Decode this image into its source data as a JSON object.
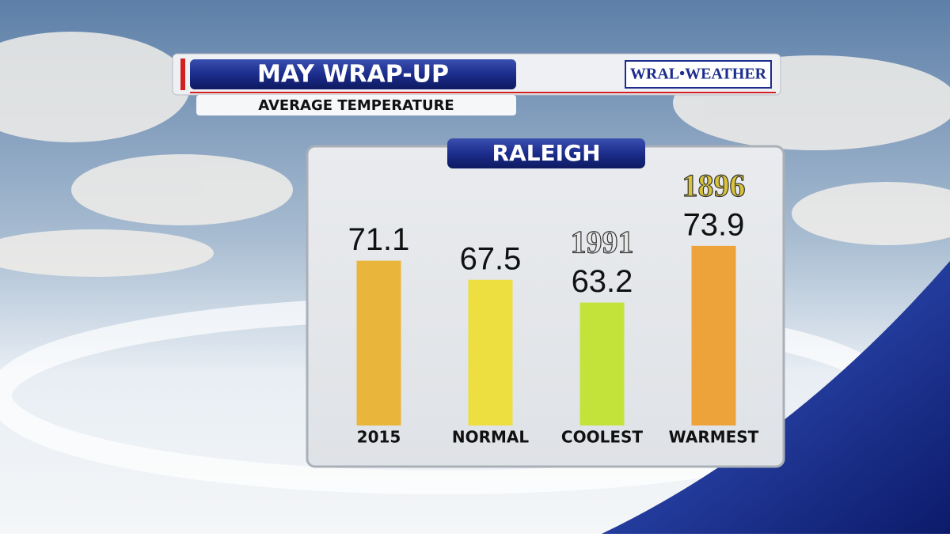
{
  "header": {
    "title": "MAY WRAP-UP",
    "subtitle": "AVERAGE TEMPERATURE",
    "logo": "WRAL•WEATHER"
  },
  "chart_data": {
    "type": "bar",
    "title": "RALEIGH",
    "categories": [
      "2015",
      "NORMAL",
      "COOLEST",
      "WARMEST"
    ],
    "values": [
      71.1,
      67.5,
      63.2,
      73.9
    ],
    "colors": [
      "#e9b53a",
      "#ecdf3f",
      "#c4e33a",
      "#eda33a"
    ],
    "year_labels": [
      null,
      null,
      "1991",
      "1896"
    ],
    "year_label_colors": [
      null,
      null,
      "#e8e8e8",
      "#d8c33a"
    ],
    "ylim": [
      40,
      80
    ]
  }
}
